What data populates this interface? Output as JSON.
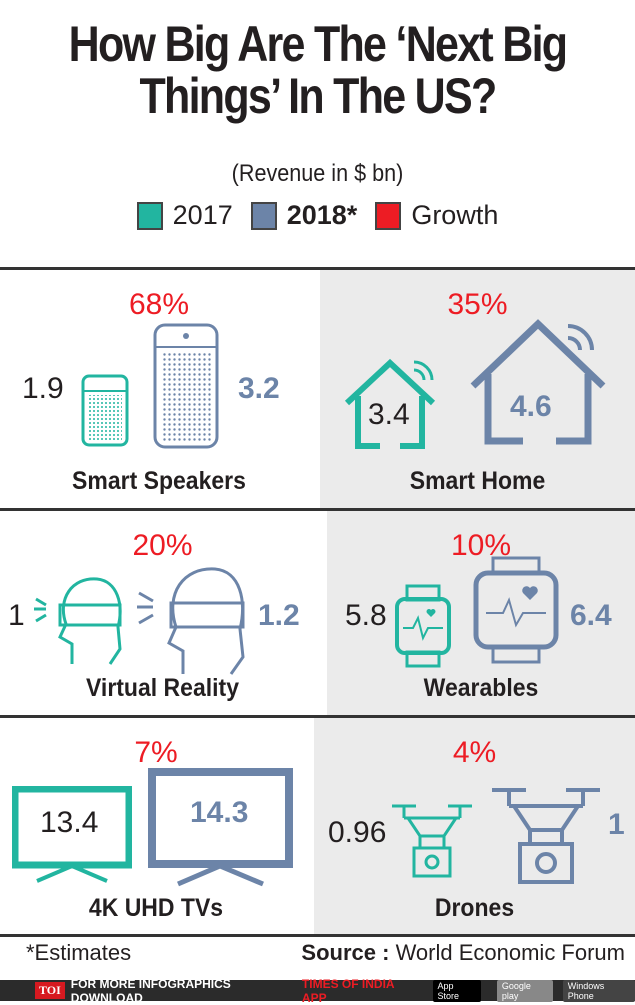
{
  "title": "How Big Are The ‘Next Big Things’ In The US?",
  "subtitle": "(Revenue in $ bn)",
  "legend": [
    {
      "label": "2017",
      "color": "#22b5a0"
    },
    {
      "label": "2018*",
      "color": "#6c84a8"
    },
    {
      "label": "Growth",
      "color": "#ed1c24"
    }
  ],
  "chart_data": {
    "type": "table",
    "title": "How Big Are The ‘Next Big Things’ In The US?",
    "unit": "(Revenue in $ bn)",
    "categories": [
      "Smart Speakers",
      "Smart Home",
      "Virtual Reality",
      "Wearables",
      "4K UHD TVs",
      "Drones"
    ],
    "series": [
      {
        "name": "2017",
        "values": [
          "1.9",
          "3.4",
          "1",
          "5.8",
          "13.4",
          "0.96"
        ]
      },
      {
        "name": "2018*",
        "values": [
          "3.2",
          "4.6",
          "1.2",
          "6.4",
          "14.3",
          "1"
        ]
      },
      {
        "name": "Growth",
        "values": [
          "68%",
          "35%",
          "20%",
          "10%",
          "7%",
          "4%"
        ]
      }
    ]
  },
  "footnote": "*Estimates",
  "source_label": "Source :",
  "source": "World Economic Forum",
  "banner": {
    "logo": "TOI",
    "text": "FOR MORE  INFOGRAPHICS DOWNLOAD",
    "app": "TIMES OF INDIA  APP",
    "stores": [
      "App Store",
      "Google play",
      "Windows Phone"
    ]
  }
}
